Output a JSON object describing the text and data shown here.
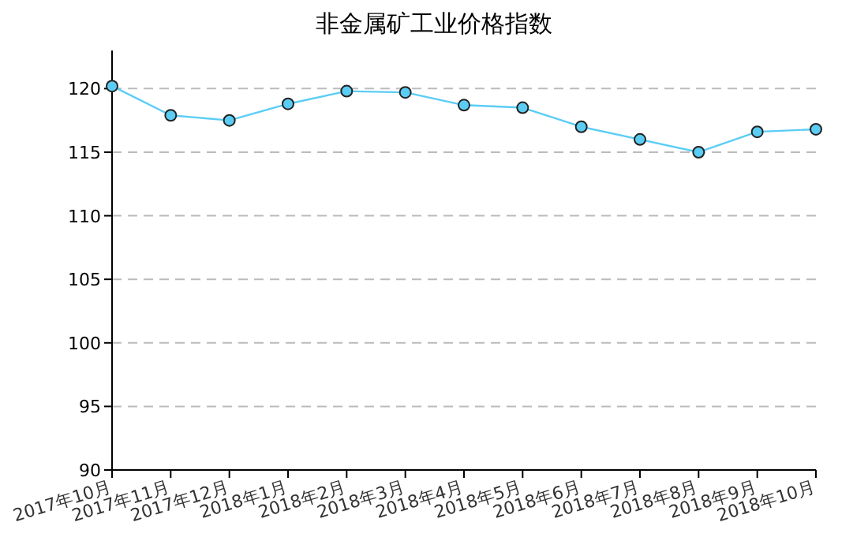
{
  "chart_data": {
    "type": "line",
    "title": "非金属矿工业价格指数",
    "categories": [
      "2017年10月",
      "2017年11月",
      "2017年12月",
      "2018年1月",
      "2018年2月",
      "2018年3月",
      "2018年4月",
      "2018年5月",
      "2018年6月",
      "2018年7月",
      "2018年8月",
      "2018年9月",
      "2018年10月"
    ],
    "series": [
      {
        "color": "#5bcdf5",
        "values": [
          120.2,
          117.9,
          117.5,
          118.8,
          119.8,
          119.7,
          118.7,
          118.5,
          117.0,
          116.0,
          115.0,
          116.6,
          116.8
        ]
      }
    ],
    "ylim": [
      90,
      123
    ],
    "yticks": [
      90,
      95,
      100,
      105,
      110,
      115,
      120
    ],
    "grid": "y",
    "marker": "circle",
    "line_style": "solid"
  }
}
